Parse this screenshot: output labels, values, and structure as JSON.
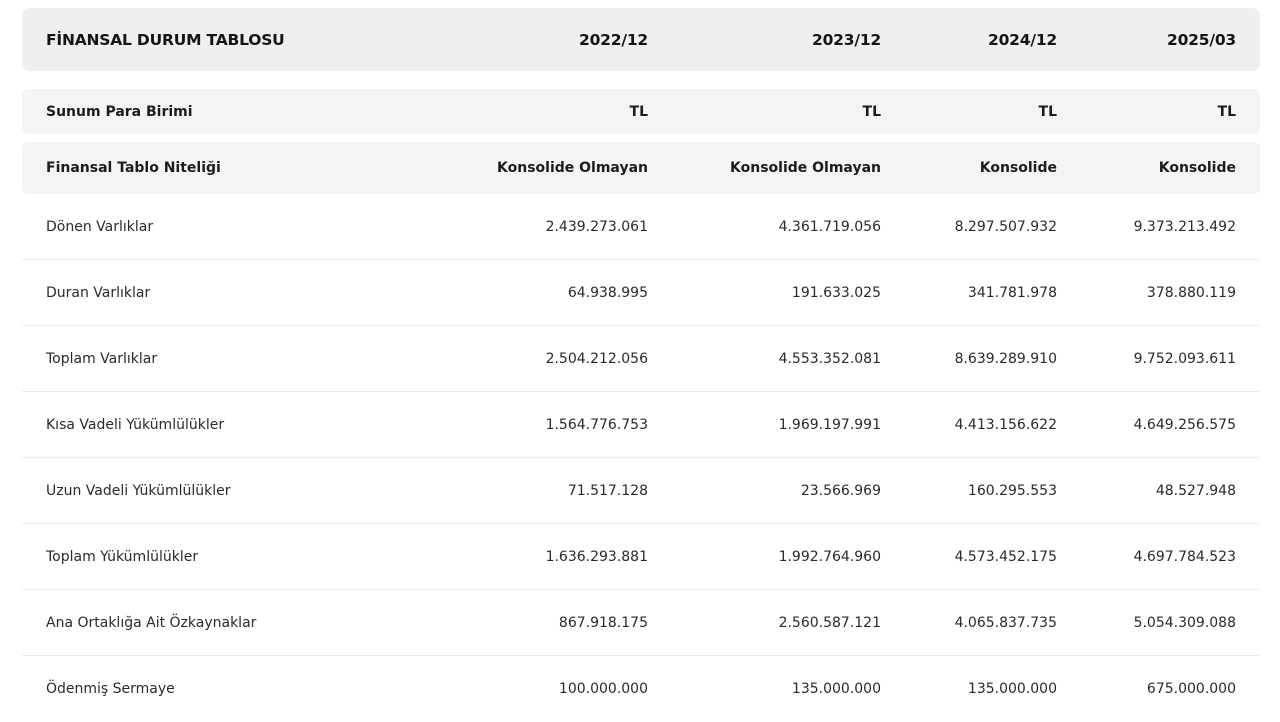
{
  "table": {
    "title": "FİNANSAL DURUM TABLOSU",
    "periods": [
      "2022/12",
      "2023/12",
      "2024/12",
      "2025/03"
    ],
    "currency_row": {
      "label": "Sunum Para Birimi",
      "values": [
        "TL",
        "TL",
        "TL",
        "TL"
      ]
    },
    "nature_row": {
      "label": "Finansal Tablo Niteliği",
      "values": [
        "Konsolide Olmayan",
        "Konsolide Olmayan",
        "Konsolide",
        "Konsolide"
      ]
    },
    "rows": [
      {
        "label": "Dönen Varlıklar",
        "values": [
          "2.439.273.061",
          "4.361.719.056",
          "8.297.507.932",
          "9.373.213.492"
        ]
      },
      {
        "label": "Duran Varlıklar",
        "values": [
          "64.938.995",
          "191.633.025",
          "341.781.978",
          "378.880.119"
        ]
      },
      {
        "label": "Toplam Varlıklar",
        "values": [
          "2.504.212.056",
          "4.553.352.081",
          "8.639.289.910",
          "9.752.093.611"
        ]
      },
      {
        "label": "Kısa Vadeli Yükümlülükler",
        "values": [
          "1.564.776.753",
          "1.969.197.991",
          "4.413.156.622",
          "4.649.256.575"
        ]
      },
      {
        "label": "Uzun Vadeli Yükümlülükler",
        "values": [
          "71.517.128",
          "23.566.969",
          "160.295.553",
          "48.527.948"
        ]
      },
      {
        "label": "Toplam Yükümlülükler",
        "values": [
          "1.636.293.881",
          "1.992.764.960",
          "4.573.452.175",
          "4.697.784.523"
        ]
      },
      {
        "label": "Ana Ortaklığa Ait Özkaynaklar",
        "values": [
          "867.918.175",
          "2.560.587.121",
          "4.065.837.735",
          "5.054.309.088"
        ]
      },
      {
        "label": "Ödenmiş Sermaye",
        "values": [
          "100.000.000",
          "135.000.000",
          "135.000.000",
          "675.000.000"
        ]
      }
    ]
  }
}
